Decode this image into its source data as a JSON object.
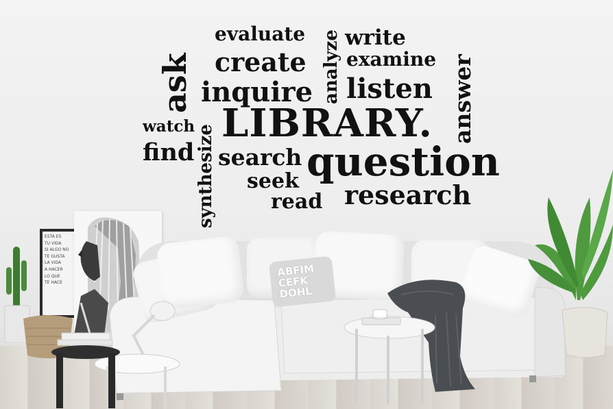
{
  "wall_words": {
    "evaluate": "evaluate",
    "write": "write",
    "analyze": "analyze",
    "ask": "ask",
    "create": "create",
    "examine": "examine",
    "answer": "answer",
    "inquire": "inquire",
    "listen": "listen",
    "library": "LIBRARY.",
    "watch": "watch",
    "synthesize": "synthesize",
    "find": "find",
    "search": "search",
    "question": "question",
    "seek": "seek",
    "read": "read",
    "research": "research"
  },
  "poster_lines": [
    "ESTA ES",
    "TU VIDA",
    "SI ALGO NO",
    "TE GUSTA",
    "LA VIDA",
    "A HACER",
    "LO QUE",
    "TE HACE"
  ],
  "pillow_letters": "ABFIM CEFK DOHL",
  "colors": {
    "wall": "#efefef",
    "lettering": "#111111",
    "sofa": "#e9e9e9",
    "throw": "#4a4d52",
    "plant": "#4f9a3f"
  }
}
